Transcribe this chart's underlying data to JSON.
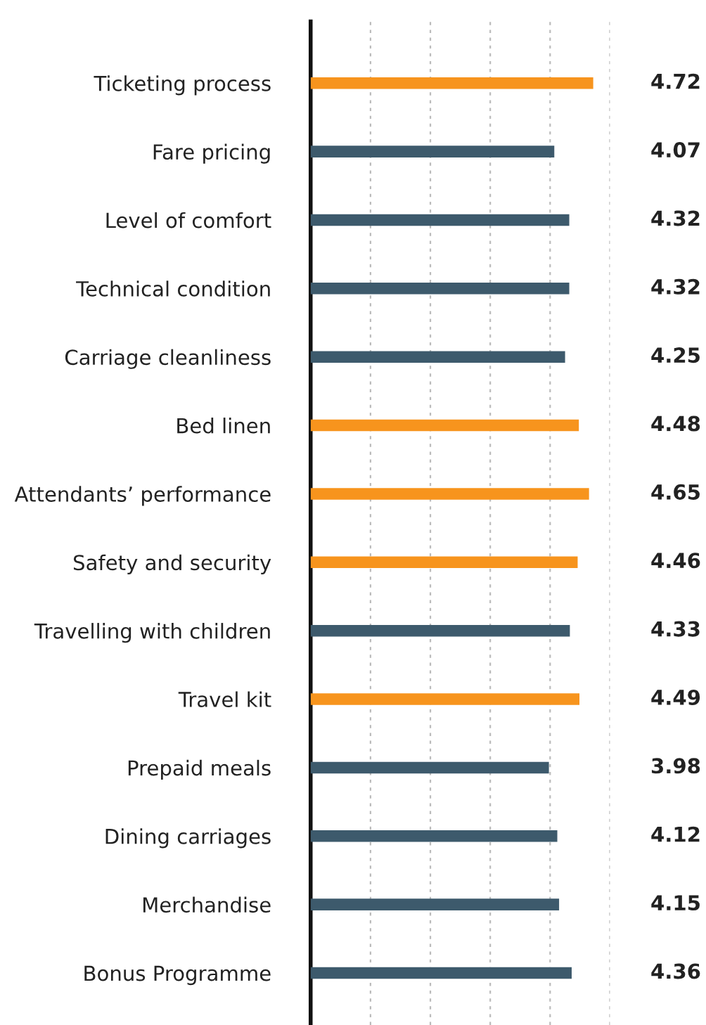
{
  "chart_data": {
    "type": "bar",
    "orientation": "horizontal",
    "categories": [
      "Ticketing process",
      "Fare pricing",
      "Level of comfort",
      "Technical condition",
      "Carriage cleanliness",
      "Bed linen",
      "Attendants’ performance",
      "Safety and security",
      "Travelling with children",
      "Travel kit",
      "Prepaid meals",
      "Dining carriages",
      "Merchandise",
      "Bonus Programme"
    ],
    "values": [
      4.72,
      4.07,
      4.32,
      4.32,
      4.25,
      4.48,
      4.65,
      4.46,
      4.33,
      4.49,
      3.98,
      4.12,
      4.15,
      4.36
    ],
    "colors": [
      "#f7941d",
      "#3d5a6c",
      "#3d5a6c",
      "#3d5a6c",
      "#3d5a6c",
      "#f7941d",
      "#f7941d",
      "#f7941d",
      "#3d5a6c",
      "#f7941d",
      "#3d5a6c",
      "#3d5a6c",
      "#3d5a6c",
      "#3d5a6c"
    ],
    "xlim": [
      0,
      5
    ],
    "xticks": [
      {
        "value": 1,
        "label": null
      },
      {
        "value": 2,
        "label": null
      },
      {
        "value": 3,
        "label": null
      },
      {
        "value": 4,
        "label": null
      },
      {
        "value": 5,
        "label": null
      }
    ],
    "grid": "x",
    "data_labels": true,
    "tick_labels": "y"
  }
}
